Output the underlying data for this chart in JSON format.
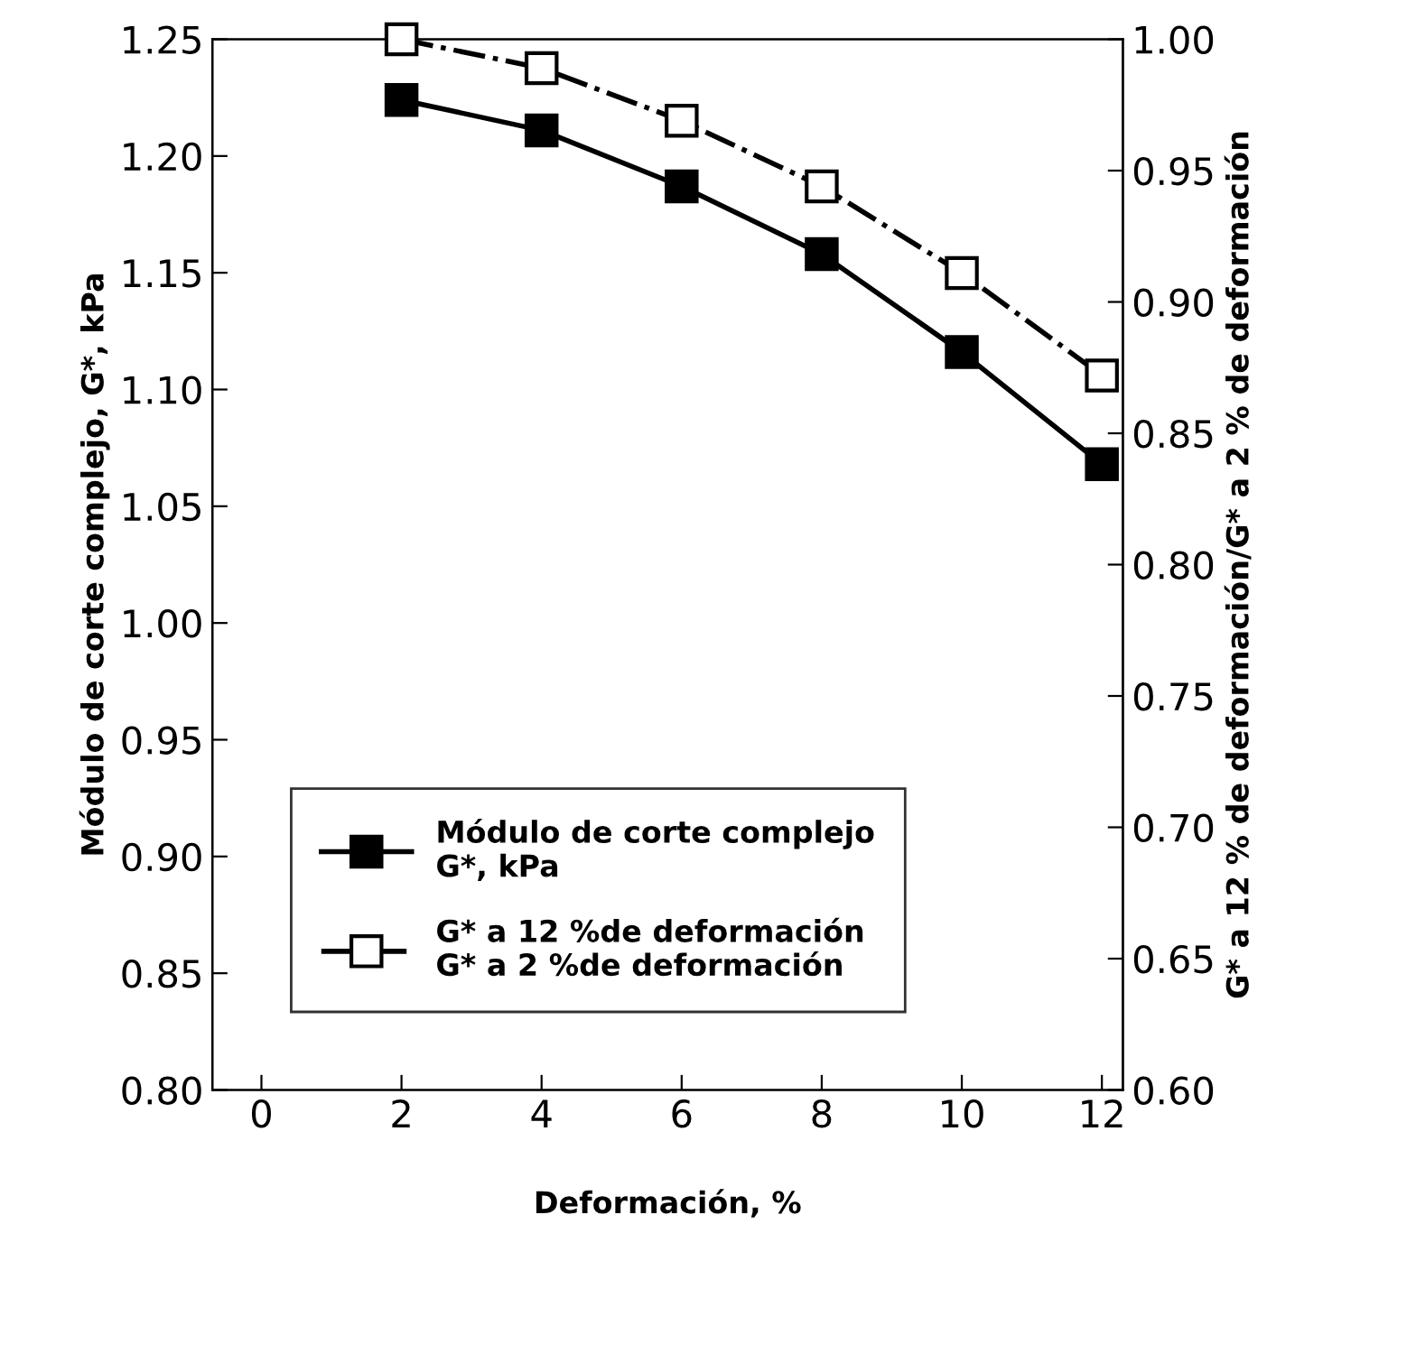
{
  "chart_data": {
    "type": "line",
    "xlabel": "Deformación, %",
    "ylabel": "Módulo de corte complejo, G*, kPa",
    "y2label": "G* a 12 % de deformación/G* a 2 % de deformación",
    "x": [
      2,
      4,
      6,
      8,
      10,
      12
    ],
    "series": [
      {
        "name": "Módulo de corte complejo\nG*, kPa",
        "color": "#000000",
        "values": [
          1.224,
          1.211,
          1.187,
          1.158,
          1.116,
          1.068
        ],
        "marker": "square",
        "line_style": "solid"
      },
      {
        "name": "G* a 12 %de deformación\nG* a 2 %de deformación",
        "color": "#000000",
        "values": [
          1.0,
          0.989,
          0.969,
          0.944,
          0.911,
          0.872
        ],
        "marker": "square",
        "line_style": "dashdot",
        "axis": "y2"
      }
    ],
    "xlim": [
      -0.7,
      12.3
    ],
    "xticks": [
      0,
      2,
      4,
      6,
      8,
      10,
      12
    ],
    "ylim": [
      0.8,
      1.25
    ],
    "yticks": [
      {
        "value": 0.8,
        "label": "0.80"
      },
      {
        "value": 0.85,
        "label": "0.85"
      },
      {
        "value": 0.9,
        "label": "0.90"
      },
      {
        "value": 0.95,
        "label": "0.95"
      },
      {
        "value": 1.0,
        "label": "1.00"
      },
      {
        "value": 1.05,
        "label": "1.05"
      },
      {
        "value": 1.1,
        "label": "1.10"
      },
      {
        "value": 1.15,
        "label": "1.15"
      },
      {
        "value": 1.2,
        "label": "1.20"
      },
      {
        "value": 1.25,
        "label": "1.25"
      }
    ],
    "y2lim": [
      0.6,
      1.0
    ],
    "y2ticks": [
      {
        "value": 0.6,
        "label": "0.60"
      },
      {
        "value": 0.65,
        "label": "0.65"
      },
      {
        "value": 0.7,
        "label": "0.70"
      },
      {
        "value": 0.75,
        "label": "0.75"
      },
      {
        "value": 0.8,
        "label": "0.80"
      },
      {
        "value": 0.85,
        "label": "0.85"
      },
      {
        "value": 0.9,
        "label": "0.90"
      },
      {
        "value": 0.95,
        "label": "0.95"
      },
      {
        "value": 1.0,
        "label": "1.00"
      }
    ],
    "grid": false,
    "legend": "bottom left"
  }
}
